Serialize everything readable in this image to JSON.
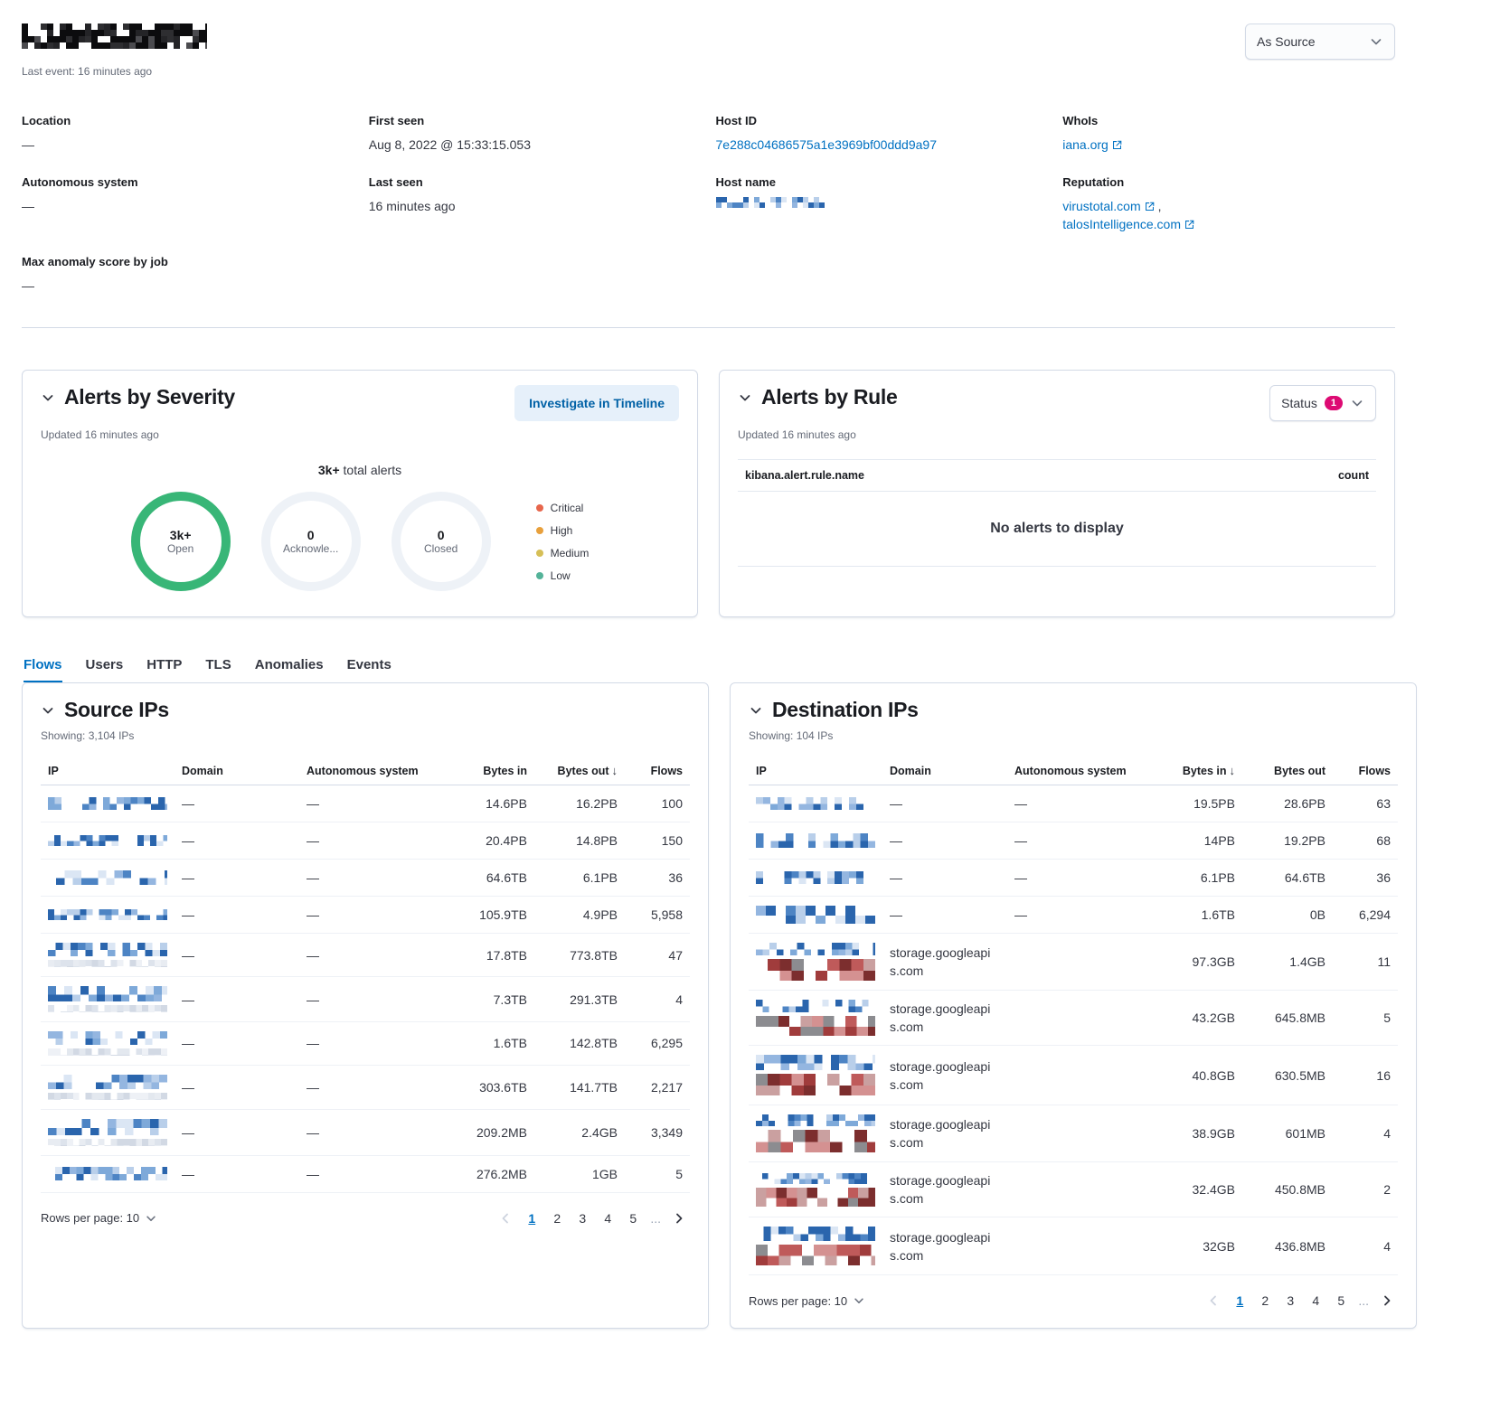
{
  "theme": {
    "link_blue": "#0071c2",
    "accent_pink": "#dd0a73",
    "donut_open_green": "#38b677",
    "donut_empty_gray": "#eef2f7",
    "panel_border": "#d3dae6"
  },
  "page": {
    "title_redacted": "[redacted IP address]",
    "last_event": "Last event: 16 minutes ago"
  },
  "view_selector": {
    "value": "As Source"
  },
  "overview": {
    "location": {
      "label": "Location",
      "value": "—"
    },
    "autonomous_system": {
      "label": "Autonomous system",
      "value": "—"
    },
    "max_anomaly": {
      "label": "Max anomaly score by job",
      "value": "—"
    },
    "first_seen": {
      "label": "First seen",
      "value": "Aug 8, 2022 @ 15:33:15.053"
    },
    "last_seen": {
      "label": "Last seen",
      "value": "16 minutes ago"
    },
    "host_id": {
      "label": "Host ID",
      "value": "7e288c04686575a1e3969bf00ddd9a97"
    },
    "host_name": {
      "label": "Host name",
      "value": "[redacted]"
    },
    "whois": {
      "label": "WhoIs",
      "value": "iana.org"
    },
    "reputation": {
      "label": "Reputation",
      "link1": "virustotal.com",
      "separator": ",",
      "link2": "talosIntelligence.com"
    }
  },
  "alerts_by_severity": {
    "title": "Alerts by Severity",
    "updated": "Updated 16 minutes ago",
    "investigate_button": "Investigate in Timeline",
    "total": "3k+",
    "total_suffix": " total alerts",
    "donuts": [
      {
        "value": "3k+",
        "label": "Open",
        "color": "#38b677"
      },
      {
        "value": "0",
        "label": "Acknowle...",
        "color": "#eef2f7"
      },
      {
        "value": "0",
        "label": "Closed",
        "color": "#eef2f7"
      }
    ],
    "legend": [
      {
        "label": "Critical",
        "color": "#e7664c"
      },
      {
        "label": "High",
        "color": "#e8a03c"
      },
      {
        "label": "Medium",
        "color": "#d6bf57"
      },
      {
        "label": "Low",
        "color": "#54b399"
      }
    ]
  },
  "alerts_by_rule": {
    "title": "Alerts by Rule",
    "updated": "Updated 16 minutes ago",
    "status_label": "Status",
    "status_count": "1",
    "col_rule": "kibana.alert.rule.name",
    "col_count": "count",
    "empty": "No alerts to display"
  },
  "tabs": [
    {
      "label": "Flows",
      "active": true
    },
    {
      "label": "Users",
      "active": false
    },
    {
      "label": "HTTP",
      "active": false
    },
    {
      "label": "TLS",
      "active": false
    },
    {
      "label": "Anomalies",
      "active": false
    },
    {
      "label": "Events",
      "active": false
    }
  ],
  "source_ips": {
    "title": "Source IPs",
    "showing": "Showing: 3,104 IPs",
    "columns": [
      {
        "key": "ip",
        "label": "IP"
      },
      {
        "key": "domain",
        "label": "Domain"
      },
      {
        "key": "as",
        "label": "Autonomous system"
      },
      {
        "key": "bytes_in",
        "label": "Bytes in"
      },
      {
        "key": "bytes_out",
        "label": "Bytes out"
      },
      {
        "key": "flows",
        "label": "Flows"
      }
    ],
    "sort_column": "bytes_out",
    "rows": [
      {
        "ip": "[redacted]",
        "domain": "—",
        "as": "—",
        "bytes_in": "14.6PB",
        "bytes_out": "16.2PB",
        "flows": "100"
      },
      {
        "ip": "[redacted]",
        "domain": "—",
        "as": "—",
        "bytes_in": "20.4PB",
        "bytes_out": "14.8PB",
        "flows": "150"
      },
      {
        "ip": "[redacted]",
        "domain": "—",
        "as": "—",
        "bytes_in": "64.6TB",
        "bytes_out": "6.1PB",
        "flows": "36"
      },
      {
        "ip": "[redacted]",
        "domain": "—",
        "as": "—",
        "bytes_in": "105.9TB",
        "bytes_out": "4.9PB",
        "flows": "5,958"
      },
      {
        "ip": "[redacted]",
        "domain": "—",
        "as": "—",
        "bytes_in": "17.8TB",
        "bytes_out": "773.8TB",
        "flows": "47"
      },
      {
        "ip": "[redacted]",
        "domain": "—",
        "as": "—",
        "bytes_in": "7.3TB",
        "bytes_out": "291.3TB",
        "flows": "4"
      },
      {
        "ip": "[redacted]",
        "domain": "—",
        "as": "—",
        "bytes_in": "1.6TB",
        "bytes_out": "142.8TB",
        "flows": "6,295"
      },
      {
        "ip": "[redacted]",
        "domain": "—",
        "as": "—",
        "bytes_in": "303.6TB",
        "bytes_out": "141.7TB",
        "flows": "2,217"
      },
      {
        "ip": "[redacted]",
        "domain": "—",
        "as": "—",
        "bytes_in": "209.2MB",
        "bytes_out": "2.4GB",
        "flows": "3,349"
      },
      {
        "ip": "[redacted]",
        "domain": "—",
        "as": "—",
        "bytes_in": "276.2MB",
        "bytes_out": "1GB",
        "flows": "5"
      }
    ],
    "pagination": {
      "rows_per_page": "Rows per page: 10",
      "pages": [
        "1",
        "2",
        "3",
        "4",
        "5"
      ],
      "active_page": "1",
      "ellipsis": "..."
    }
  },
  "destination_ips": {
    "title": "Destination IPs",
    "showing": "Showing: 104 IPs",
    "columns": [
      {
        "key": "ip",
        "label": "IP"
      },
      {
        "key": "domain",
        "label": "Domain"
      },
      {
        "key": "as",
        "label": "Autonomous system"
      },
      {
        "key": "bytes_in",
        "label": "Bytes in"
      },
      {
        "key": "bytes_out",
        "label": "Bytes out"
      },
      {
        "key": "flows",
        "label": "Flows"
      }
    ],
    "sort_column": "bytes_in",
    "rows": [
      {
        "ip": "[redacted]",
        "domain": "—",
        "as": "—",
        "bytes_in": "19.5PB",
        "bytes_out": "28.6PB",
        "flows": "63"
      },
      {
        "ip": "[redacted]",
        "domain": "—",
        "as": "—",
        "bytes_in": "14PB",
        "bytes_out": "19.2PB",
        "flows": "68"
      },
      {
        "ip": "[redacted]",
        "domain": "—",
        "as": "—",
        "bytes_in": "6.1PB",
        "bytes_out": "64.6TB",
        "flows": "36"
      },
      {
        "ip": "[redacted]",
        "domain": "—",
        "as": "—",
        "bytes_in": "1.6TB",
        "bytes_out": "0B",
        "flows": "6,294"
      },
      {
        "ip": "[redacted]",
        "domain": "storage.googleapis.com",
        "as": "",
        "bytes_in": "97.3GB",
        "bytes_out": "1.4GB",
        "flows": "11"
      },
      {
        "ip": "[redacted]",
        "domain": "storage.googleapis.com",
        "as": "",
        "bytes_in": "43.2GB",
        "bytes_out": "645.8MB",
        "flows": "5"
      },
      {
        "ip": "[redacted]",
        "domain": "storage.googleapis.com",
        "as": "",
        "bytes_in": "40.8GB",
        "bytes_out": "630.5MB",
        "flows": "16"
      },
      {
        "ip": "[redacted]",
        "domain": "storage.googleapis.com",
        "as": "",
        "bytes_in": "38.9GB",
        "bytes_out": "601MB",
        "flows": "4"
      },
      {
        "ip": "[redacted]",
        "domain": "storage.googleapis.com",
        "as": "",
        "bytes_in": "32.4GB",
        "bytes_out": "450.8MB",
        "flows": "2"
      },
      {
        "ip": "[redacted]",
        "domain": "storage.googleapis.com",
        "as": "",
        "bytes_in": "32GB",
        "bytes_out": "436.8MB",
        "flows": "4"
      }
    ],
    "pagination": {
      "rows_per_page": "Rows per page: 10",
      "pages": [
        "1",
        "2",
        "3",
        "4",
        "5"
      ],
      "active_page": "1",
      "ellipsis": "..."
    }
  }
}
